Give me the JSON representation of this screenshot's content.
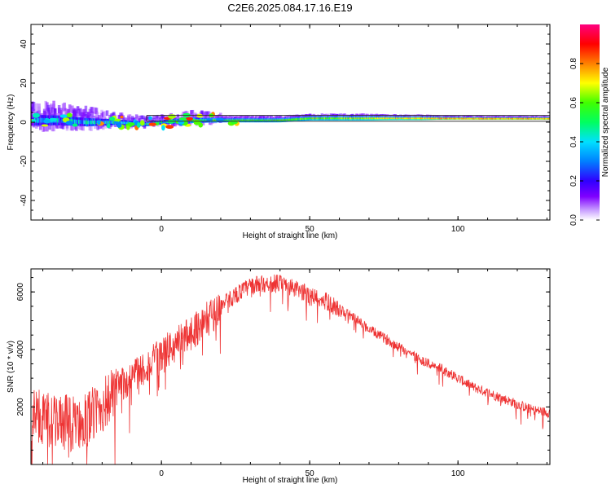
{
  "figure": {
    "title": "C2E6.2025.084.17.16.E19"
  },
  "chart_data": [
    {
      "type": "heatmap",
      "title": "C2E6.2025.084.17.16.E19",
      "xlabel": "Height of straight line (km)",
      "ylabel": "Frequency (Hz)",
      "xlim": [
        -44,
        131
      ],
      "ylim": [
        -50,
        50
      ],
      "x_ticks": [
        0,
        50,
        100
      ],
      "y_ticks": [
        40,
        20,
        0,
        -20,
        -40
      ],
      "colorbar": {
        "label": "Normalized spectral amplitude",
        "range": [
          0,
          1
        ],
        "ticks": [
          0.0,
          0.2,
          0.4,
          0.6,
          0.8
        ],
        "colormap": "rainbow"
      },
      "ridge": {
        "description_x": [
          -44,
          -35,
          -25,
          -15,
          -5,
          0,
          10,
          20,
          30,
          40,
          50,
          60,
          70,
          80,
          87,
          95,
          110,
          131
        ],
        "center_frequency_hz": [
          1,
          1,
          0,
          0,
          -1,
          0,
          1,
          1,
          1,
          1,
          2,
          2,
          2,
          2,
          2,
          2,
          2,
          2
        ],
        "spread_hz": [
          8,
          7,
          6,
          4,
          3,
          3,
          4,
          3,
          3,
          3,
          3,
          3,
          3,
          2.5,
          2.5,
          2,
          1.5,
          1.5
        ]
      },
      "reference_lines_hz": [
        0.5,
        3.5
      ]
    },
    {
      "type": "line",
      "xlabel": "Height of straight line (km)",
      "ylabel": "SNR (10 * v/v)",
      "xlim": [
        -44,
        131
      ],
      "ylim": [
        0,
        6800
      ],
      "x_ticks": [
        0,
        50,
        100
      ],
      "y_ticks": [
        2000,
        4000,
        6000
      ],
      "color": "#ee3333",
      "x": [
        -44,
        -40,
        -35,
        -30,
        -25,
        -20,
        -15,
        -10,
        -5,
        0,
        5,
        10,
        15,
        20,
        25,
        30,
        35,
        40,
        45,
        50,
        55,
        60,
        65,
        70,
        75,
        80,
        85,
        90,
        95,
        100,
        105,
        110,
        115,
        120,
        125,
        131
      ],
      "y": [
        1800,
        1600,
        1500,
        1400,
        1600,
        2000,
        2600,
        3100,
        3400,
        3800,
        4200,
        4600,
        5000,
        5500,
        5900,
        6200,
        6300,
        6300,
        6100,
        5900,
        5700,
        5400,
        5100,
        4700,
        4400,
        4100,
        3800,
        3500,
        3300,
        3000,
        2700,
        2500,
        2300,
        2100,
        1900,
        1800
      ]
    }
  ]
}
